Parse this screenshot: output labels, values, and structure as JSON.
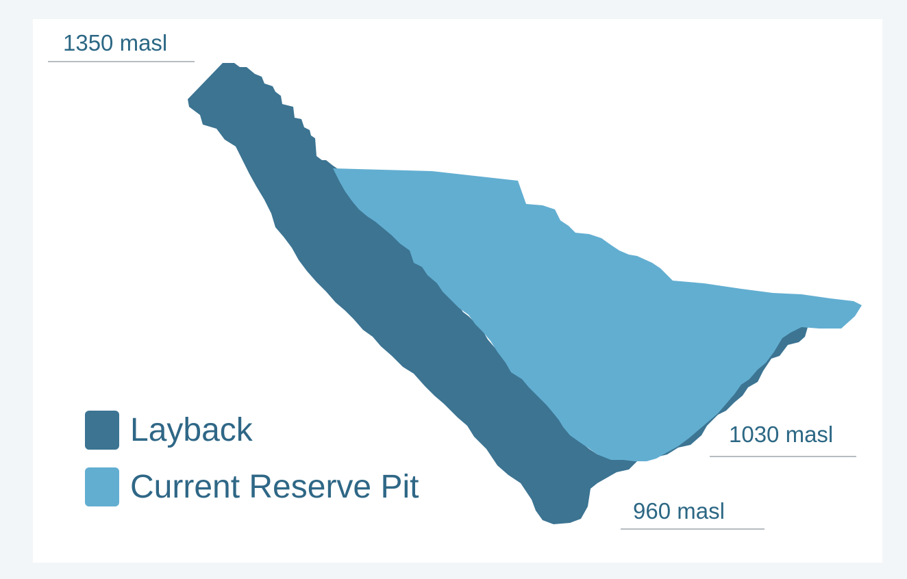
{
  "diagram": {
    "elevations": {
      "top": "1350 masl",
      "current_pit_bottom": "1030 masl",
      "layback_bottom": "960 masl"
    },
    "legend": {
      "layback": {
        "label": "Layback",
        "color": "#3c7492"
      },
      "current_reserve_pit": {
        "label": "Current Reserve Pit",
        "color": "#62aed1"
      }
    },
    "colors": {
      "label_text": "#2c6784",
      "underline": "#b6bcc0",
      "background": "#f3f6f8",
      "panel": "#ffffff"
    }
  }
}
